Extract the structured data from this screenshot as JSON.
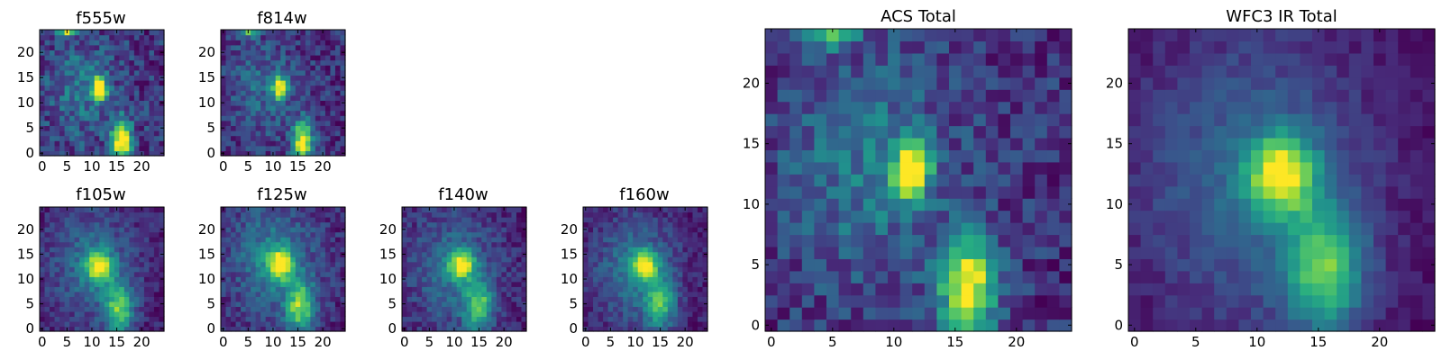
{
  "chart_data": [
    {
      "type": "heatmap",
      "title": "f555w",
      "xlabel": "",
      "ylabel": "",
      "x_ticks": [
        0,
        5,
        10,
        15,
        20
      ],
      "y_ticks": [
        0,
        5,
        10,
        15,
        20
      ],
      "xlim": [
        0,
        24
      ],
      "ylim": [
        0,
        24
      ],
      "grid_size": [
        25,
        25
      ],
      "colormap": "viridis",
      "noise": 0.22,
      "seed": 11,
      "sources": [
        {
          "x": 5,
          "y": 24,
          "amp": 0.9,
          "sx": 1.2,
          "sy": 0.6
        },
        {
          "x": 11.5,
          "y": 13,
          "amp": 1.25,
          "sx": 1.0,
          "sy": 1.6
        },
        {
          "x": 16,
          "y": 2.5,
          "amp": 1.3,
          "sx": 1.4,
          "sy": 2.8
        }
      ],
      "background": [
        {
          "x": 8,
          "y": 13,
          "amp": 0.3,
          "sx": 5,
          "sy": 7
        }
      ]
    },
    {
      "type": "heatmap",
      "title": "f814w",
      "xlabel": "",
      "ylabel": "",
      "x_ticks": [
        0,
        5,
        10,
        15,
        20
      ],
      "y_ticks": [
        0,
        5,
        10,
        15,
        20
      ],
      "xlim": [
        0,
        24
      ],
      "ylim": [
        0,
        24
      ],
      "grid_size": [
        25,
        25
      ],
      "colormap": "viridis",
      "noise": 0.22,
      "seed": 23,
      "sources": [
        {
          "x": 5,
          "y": 24,
          "amp": 0.8,
          "sx": 1.2,
          "sy": 0.6
        },
        {
          "x": 11.5,
          "y": 13,
          "amp": 1.25,
          "sx": 1.0,
          "sy": 1.6
        },
        {
          "x": 16,
          "y": 2.5,
          "amp": 1.3,
          "sx": 1.4,
          "sy": 2.8
        }
      ],
      "background": [
        {
          "x": 8,
          "y": 13,
          "amp": 0.3,
          "sx": 5,
          "sy": 7
        }
      ]
    },
    {
      "type": "heatmap",
      "title": "f105w",
      "xlabel": "",
      "ylabel": "",
      "x_ticks": [
        0,
        5,
        10,
        15,
        20
      ],
      "y_ticks": [
        0,
        5,
        10,
        15,
        20
      ],
      "xlim": [
        0,
        24
      ],
      "ylim": [
        0,
        24
      ],
      "grid_size": [
        25,
        25
      ],
      "colormap": "viridis",
      "noise": 0.16,
      "seed": 37,
      "sources": [
        {
          "x": 11.5,
          "y": 12.5,
          "amp": 1.1,
          "sx": 1.8,
          "sy": 2.2
        },
        {
          "x": 15.5,
          "y": 4,
          "amp": 0.95,
          "sx": 2.0,
          "sy": 3.5
        }
      ],
      "background": [
        {
          "x": 10,
          "y": 13,
          "amp": 0.45,
          "sx": 6,
          "sy": 8
        }
      ]
    },
    {
      "type": "heatmap",
      "title": "f125w",
      "xlabel": "",
      "ylabel": "",
      "x_ticks": [
        0,
        5,
        10,
        15,
        20
      ],
      "y_ticks": [
        0,
        5,
        10,
        15,
        20
      ],
      "xlim": [
        0,
        24
      ],
      "ylim": [
        0,
        24
      ],
      "grid_size": [
        25,
        25
      ],
      "colormap": "viridis",
      "noise": 0.17,
      "seed": 41,
      "sources": [
        {
          "x": 11.5,
          "y": 13,
          "amp": 1.1,
          "sx": 1.8,
          "sy": 2.0
        },
        {
          "x": 15.5,
          "y": 4.5,
          "amp": 0.9,
          "sx": 2.0,
          "sy": 3.5
        }
      ],
      "background": [
        {
          "x": 10,
          "y": 14,
          "amp": 0.45,
          "sx": 6,
          "sy": 8
        }
      ]
    },
    {
      "type": "heatmap",
      "title": "f140w",
      "xlabel": "",
      "ylabel": "",
      "x_ticks": [
        0,
        5,
        10,
        15,
        20
      ],
      "y_ticks": [
        0,
        5,
        10,
        15,
        20
      ],
      "xlim": [
        0,
        24
      ],
      "ylim": [
        0,
        24
      ],
      "grid_size": [
        25,
        25
      ],
      "colormap": "viridis",
      "noise": 0.17,
      "seed": 53,
      "sources": [
        {
          "x": 11.5,
          "y": 13,
          "amp": 1.1,
          "sx": 1.7,
          "sy": 2.0
        },
        {
          "x": 15,
          "y": 4.5,
          "amp": 0.85,
          "sx": 2.0,
          "sy": 3.5
        }
      ],
      "background": [
        {
          "x": 10,
          "y": 12,
          "amp": 0.45,
          "sx": 6,
          "sy": 8
        }
      ]
    },
    {
      "type": "heatmap",
      "title": "f160w",
      "xlabel": "",
      "ylabel": "",
      "x_ticks": [
        0,
        5,
        10,
        15,
        20
      ],
      "y_ticks": [
        0,
        5,
        10,
        15,
        20
      ],
      "xlim": [
        0,
        24
      ],
      "ylim": [
        0,
        24
      ],
      "grid_size": [
        25,
        25
      ],
      "colormap": "viridis",
      "noise": 0.15,
      "seed": 67,
      "sources": [
        {
          "x": 12,
          "y": 13,
          "amp": 1.15,
          "sx": 1.7,
          "sy": 1.9
        },
        {
          "x": 15,
          "y": 5,
          "amp": 0.85,
          "sx": 2.0,
          "sy": 3.5
        }
      ],
      "background": [
        {
          "x": 10,
          "y": 12,
          "amp": 0.5,
          "sx": 6,
          "sy": 8
        }
      ]
    },
    {
      "type": "heatmap",
      "title": "ACS Total",
      "xlabel": "",
      "ylabel": "",
      "x_ticks": [
        0,
        5,
        10,
        15,
        20
      ],
      "y_ticks": [
        0,
        5,
        10,
        15,
        20
      ],
      "xlim": [
        0,
        24
      ],
      "ylim": [
        0,
        24
      ],
      "grid_size": [
        25,
        25
      ],
      "colormap": "viridis",
      "noise": 0.2,
      "seed": 79,
      "sources": [
        {
          "x": 5,
          "y": 24,
          "amp": 0.85,
          "sx": 1.2,
          "sy": 0.6
        },
        {
          "x": 11.5,
          "y": 13,
          "amp": 1.3,
          "sx": 1.0,
          "sy": 1.6
        },
        {
          "x": 16,
          "y": 3,
          "amp": 1.25,
          "sx": 1.5,
          "sy": 2.8
        }
      ],
      "background": [
        {
          "x": 8,
          "y": 13,
          "amp": 0.35,
          "sx": 5,
          "sy": 7
        }
      ]
    },
    {
      "type": "heatmap",
      "title": "WFC3 IR Total",
      "xlabel": "",
      "ylabel": "",
      "x_ticks": [
        0,
        5,
        10,
        15,
        20
      ],
      "y_ticks": [
        0,
        5,
        10,
        15,
        20
      ],
      "xlim": [
        0,
        24
      ],
      "ylim": [
        0,
        24
      ],
      "grid_size": [
        25,
        25
      ],
      "colormap": "viridis",
      "noise": 0.1,
      "seed": 83,
      "sources": [
        {
          "x": 12,
          "y": 12.5,
          "amp": 1.2,
          "sx": 1.9,
          "sy": 2.2
        },
        {
          "x": 15.5,
          "y": 4.5,
          "amp": 0.95,
          "sx": 2.2,
          "sy": 3.6
        }
      ],
      "background": [
        {
          "x": 10,
          "y": 12,
          "amp": 0.5,
          "sx": 7,
          "sy": 9
        }
      ]
    }
  ]
}
